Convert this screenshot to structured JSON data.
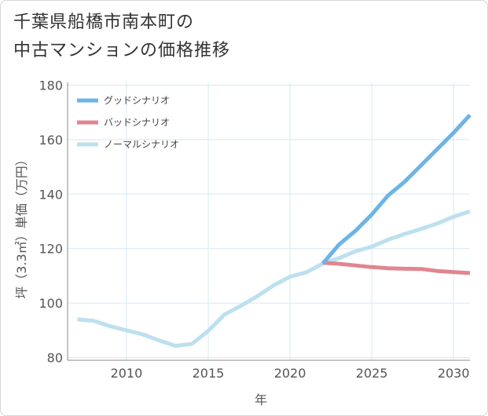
{
  "title": {
    "line1": "千葉県船橋市南本町の",
    "line2": "中古マンションの価格推移"
  },
  "colors": {
    "good": "#6cb4e8",
    "bad": "#e08690",
    "normal": "#bde0ef",
    "grid": "#d7e8f0",
    "axis": "#888888"
  },
  "chart_data": {
    "type": "line",
    "xlabel": "年",
    "ylabel": "坪（3.3㎡）単価（万円）",
    "xlim": [
      2006.4,
      2031
    ],
    "ylim": [
      79,
      181
    ],
    "xticks": [
      2010,
      2015,
      2020,
      2025,
      2030
    ],
    "yticks": [
      80,
      100,
      120,
      140,
      160,
      180
    ],
    "legend_position": "top-left",
    "series": [
      {
        "name": "グッドシナリオ",
        "key": "good",
        "x": [
          2022,
          2023,
          2024,
          2025,
          2026,
          2027,
          2028,
          2029,
          2030,
          2031
        ],
        "y": [
          114.5,
          121.5,
          126.5,
          132.5,
          139.5,
          144.5,
          150.5,
          156.5,
          162.5,
          169
        ]
      },
      {
        "name": "バッドシナリオ",
        "key": "bad",
        "x": [
          2022,
          2023,
          2024,
          2025,
          2026,
          2027,
          2028,
          2029,
          2030,
          2031
        ],
        "y": [
          114.8,
          114.4,
          113.8,
          113.2,
          112.8,
          112.6,
          112.5,
          111.8,
          111.4,
          111
        ]
      },
      {
        "name": "ノーマルシナリオ",
        "key": "normal",
        "x": [
          2007,
          2008,
          2009,
          2010,
          2011,
          2012,
          2013,
          2014,
          2015,
          2016,
          2017,
          2018,
          2019,
          2020,
          2021,
          2022,
          2023,
          2024,
          2025,
          2026,
          2027,
          2028,
          2029,
          2030,
          2031
        ],
        "y": [
          94,
          93.5,
          91.5,
          90,
          88.5,
          86.3,
          84.3,
          85,
          89.8,
          95.8,
          99,
          102.5,
          106.5,
          109.7,
          111.3,
          114.5,
          116.5,
          119,
          120.7,
          123.3,
          125.3,
          127.2,
          129.2,
          131.7,
          133.7
        ]
      }
    ]
  }
}
